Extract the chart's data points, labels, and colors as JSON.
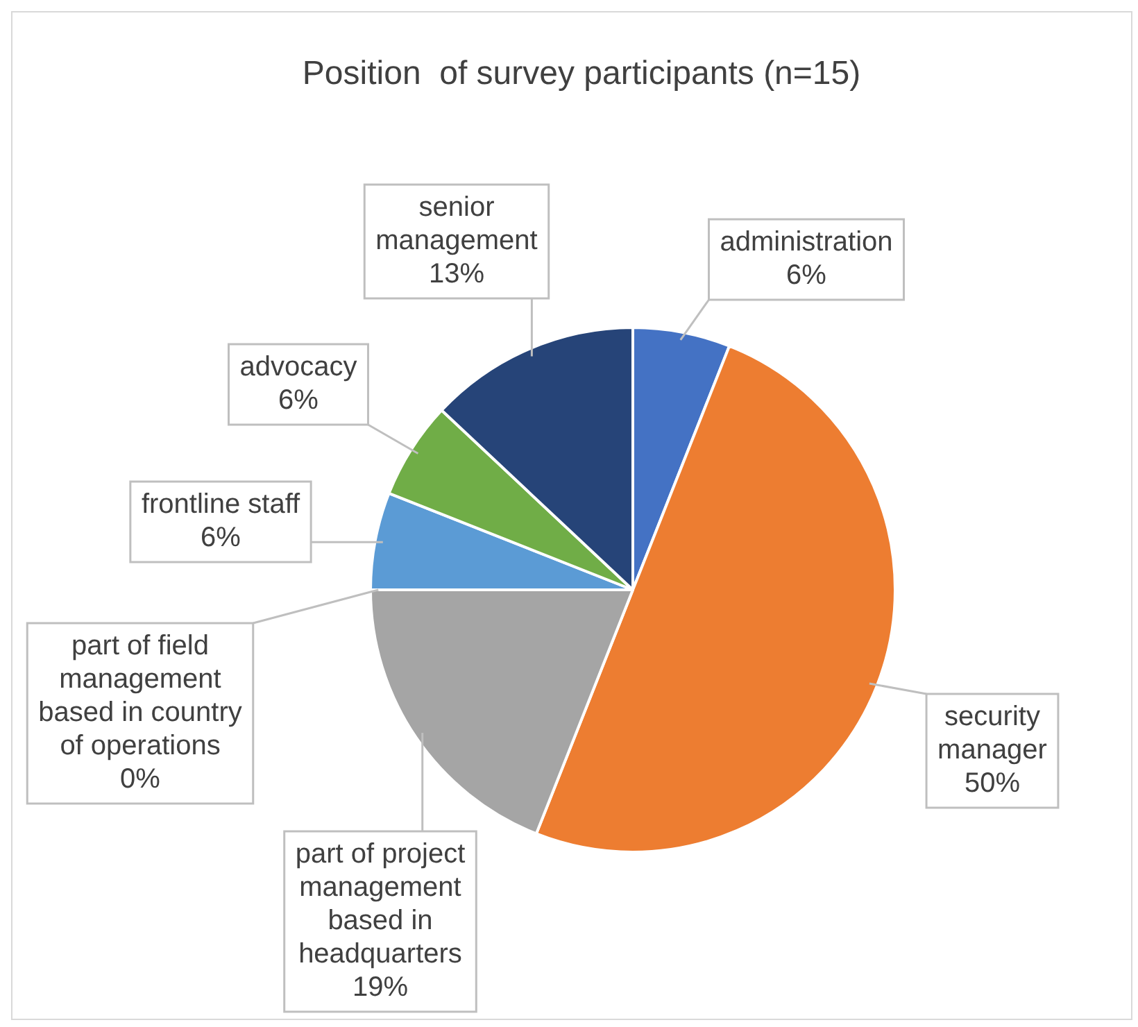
{
  "chart_data": {
    "type": "pie",
    "title": "Position  of survey participants (n=15)",
    "categories": [
      "administration",
      "security manager",
      "part of project management based in headquarters",
      "part of field management based in country of operations",
      "frontline staff",
      "advocacy",
      "senior management"
    ],
    "values": [
      6,
      50,
      19,
      0,
      6,
      6,
      13
    ],
    "value_labels": [
      "6%",
      "50%",
      "19%",
      "0%",
      "6%",
      "6%",
      "13%"
    ],
    "colors": [
      "#4472c4",
      "#ed7d31",
      "#a5a5a5",
      "#ffc000",
      "#5b9bd5",
      "#70ad47",
      "#264478"
    ],
    "legend": false
  }
}
